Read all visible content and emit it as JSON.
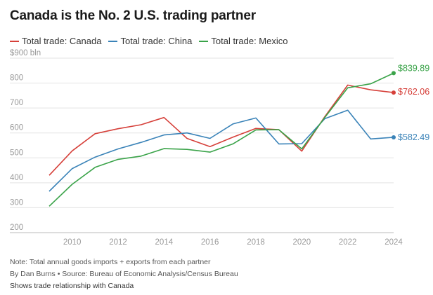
{
  "title": "Canada is the No. 2 U.S. trading partner",
  "legend": [
    {
      "label": "Total trade: Canada",
      "color": "#d6403a"
    },
    {
      "label": "Total trade: China",
      "color": "#3a83b8"
    },
    {
      "label": "Total trade: Mexico",
      "color": "#3aa349"
    }
  ],
  "footer": {
    "note": "Note: Total annual goods imports + exports from each partner",
    "credit": "By Dan Burns • Source: Bureau of Economic Analysis/Census Bureau",
    "relation": "Shows trade relationship with Canada"
  },
  "chart_data": {
    "type": "line",
    "title": "Canada is the No. 2 U.S. trading partner",
    "xlabel": "",
    "ylabel": "",
    "x": [
      2009,
      2010,
      2011,
      2012,
      2013,
      2014,
      2015,
      2016,
      2017,
      2018,
      2019,
      2020,
      2021,
      2022,
      2023,
      2024
    ],
    "xticks": [
      "2010",
      "2012",
      "2014",
      "2016",
      "2018",
      "2020",
      "2022",
      "2024"
    ],
    "xtick_values": [
      2010,
      2012,
      2014,
      2016,
      2018,
      2020,
      2022,
      2024
    ],
    "ylim": [
      200,
      900
    ],
    "yticks": [
      200,
      300,
      400,
      500,
      600,
      700,
      800,
      900
    ],
    "ytick_labels": [
      "200",
      "300",
      "400",
      "500",
      "600",
      "700",
      "800",
      "$900 bln"
    ],
    "grid": true,
    "legend_position": "top-left",
    "series": [
      {
        "name": "Total trade: Canada",
        "color": "#d6403a",
        "values": [
          430,
          528,
          597,
          617,
          633,
          662,
          578,
          545,
          583,
          618,
          613,
          527,
          665,
          792,
          773,
          762.06
        ],
        "end_label": "$762.06"
      },
      {
        "name": "Total trade: China",
        "color": "#3a83b8",
        "values": [
          366,
          457,
          503,
          536,
          562,
          592,
          600,
          578,
          636,
          660,
          556,
          557,
          657,
          691,
          576,
          582.49
        ],
        "end_label": "$582.49"
      },
      {
        "name": "Total trade: Mexico",
        "color": "#3aa349",
        "values": [
          306,
          394,
          462,
          494,
          507,
          537,
          534,
          523,
          556,
          612,
          613,
          536,
          662,
          781,
          797,
          839.89
        ],
        "end_label": "$839.89"
      }
    ]
  }
}
